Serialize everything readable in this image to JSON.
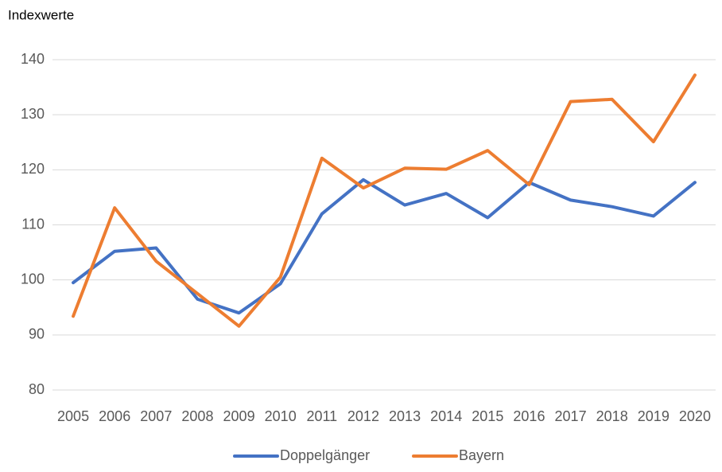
{
  "chart_data": {
    "type": "line",
    "y_label": "Indexwerte",
    "categories": [
      "2005",
      "2006",
      "2007",
      "2008",
      "2009",
      "2010",
      "2011",
      "2012",
      "2013",
      "2014",
      "2015",
      "2016",
      "2017",
      "2018",
      "2019",
      "2020"
    ],
    "series": [
      {
        "name": "Doppelgänger",
        "color": "#4472c4",
        "values": [
          99.5,
          105.2,
          105.8,
          96.5,
          94,
          99.3,
          112,
          118.2,
          113.6,
          115.7,
          111.3,
          117.7,
          114.5,
          113.3,
          111.6,
          117.7
        ]
      },
      {
        "name": "Bayern",
        "color": "#ed7d31",
        "values": [
          93.4,
          113.1,
          103.4,
          97.5,
          91.6,
          100.5,
          122.1,
          116.7,
          120.3,
          120.1,
          123.5,
          117.3,
          132.4,
          132.8,
          125.1,
          137.2
        ]
      }
    ],
    "ylim": [
      80,
      140
    ],
    "yticks": [
      80,
      90,
      100,
      110,
      120,
      130,
      140
    ],
    "grid": true,
    "legend": "bottom"
  }
}
